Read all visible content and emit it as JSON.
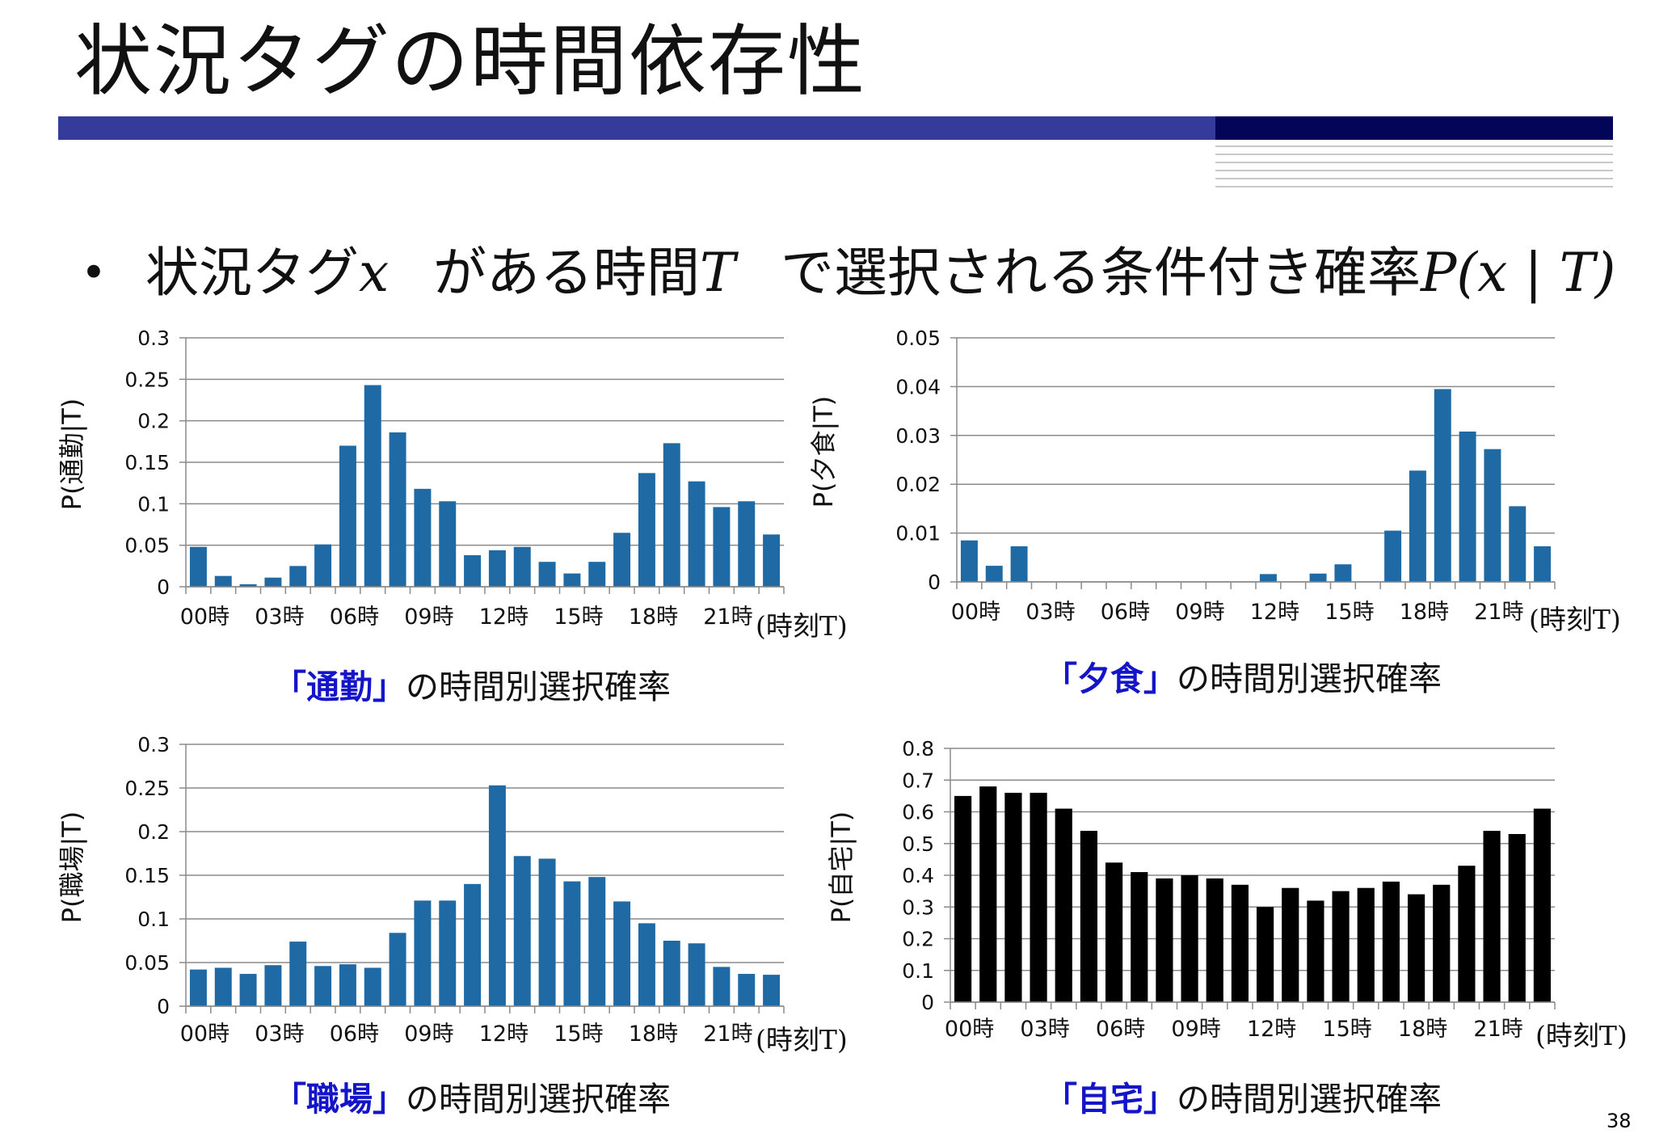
{
  "slide": {
    "title": "状況タグの時間依存性",
    "bullet": {
      "part1": "状況タグ",
      "var_x": "x",
      "part2": "がある時間",
      "var_T": "T",
      "part3": "で選択される条件付き確率",
      "formula": "P(x | T)"
    },
    "page_number": "38"
  },
  "colors": {
    "blue_bar": "#1f6aa5",
    "black_bar": "#000000",
    "accent_text": "#1414c8",
    "title_bar": "#353b9b",
    "title_bar_dark": "#020558"
  },
  "chart_data": [
    {
      "id": "commute",
      "type": "bar",
      "categories": [
        "00時",
        "01時",
        "02時",
        "03時",
        "04時",
        "05時",
        "06時",
        "07時",
        "08時",
        "09時",
        "10時",
        "11時",
        "12時",
        "13時",
        "14時",
        "15時",
        "16時",
        "17時",
        "18時",
        "19時",
        "20時",
        "21時",
        "22時",
        "23時"
      ],
      "tick_labels": [
        "00時",
        "03時",
        "06時",
        "09時",
        "12時",
        "15時",
        "18時",
        "21時"
      ],
      "values": [
        0.048,
        0.013,
        0.003,
        0.011,
        0.025,
        0.051,
        0.17,
        0.243,
        0.186,
        0.118,
        0.103,
        0.038,
        0.044,
        0.048,
        0.03,
        0.016,
        0.03,
        0.065,
        0.137,
        0.173,
        0.127,
        0.096,
        0.103,
        0.063
      ],
      "ylabel": "P(通勤|T)",
      "xlabel": "(時刻T)",
      "ylim": [
        0,
        0.3
      ],
      "yticks": [
        0,
        0.05,
        0.1,
        0.15,
        0.2,
        0.25,
        0.3
      ],
      "ytick_labels": [
        "0",
        "0.05",
        "0.1",
        "0.15",
        "0.2",
        "0.25",
        "0.3"
      ],
      "color": "#1f6aa5",
      "grid": true,
      "caption_tag": "「通勤」",
      "caption_rest": "の時間別選択確率"
    },
    {
      "id": "dinner",
      "type": "bar",
      "categories": [
        "00時",
        "01時",
        "02時",
        "03時",
        "04時",
        "05時",
        "06時",
        "07時",
        "08時",
        "09時",
        "10時",
        "11時",
        "12時",
        "13時",
        "14時",
        "15時",
        "16時",
        "17時",
        "18時",
        "19時",
        "20時",
        "21時",
        "22時",
        "23時"
      ],
      "tick_labels": [
        "00時",
        "03時",
        "06時",
        "09時",
        "12時",
        "15時",
        "18時",
        "21時"
      ],
      "values": [
        0.0085,
        0.0033,
        0.0073,
        0,
        0,
        0,
        0,
        0,
        0,
        0,
        0,
        0,
        0.0016,
        0,
        0.0017,
        0.0036,
        0,
        0.0105,
        0.0228,
        0.0395,
        0.0308,
        0.0272,
        0.0155,
        0.0073
      ],
      "ylabel": "P(夕食|T)",
      "xlabel": "(時刻T)",
      "ylim": [
        0,
        0.05
      ],
      "yticks": [
        0,
        0.01,
        0.02,
        0.03,
        0.04,
        0.05
      ],
      "ytick_labels": [
        "0",
        "0.01",
        "0.02",
        "0.03",
        "0.04",
        "0.05"
      ],
      "color": "#1f6aa5",
      "grid": true,
      "caption_tag": "「夕食」",
      "caption_rest": "の時間別選択確率"
    },
    {
      "id": "workplace",
      "type": "bar",
      "categories": [
        "00時",
        "01時",
        "02時",
        "03時",
        "04時",
        "05時",
        "06時",
        "07時",
        "08時",
        "09時",
        "10時",
        "11時",
        "12時",
        "13時",
        "14時",
        "15時",
        "16時",
        "17時",
        "18時",
        "19時",
        "20時",
        "21時",
        "22時",
        "23時"
      ],
      "tick_labels": [
        "00時",
        "03時",
        "06時",
        "09時",
        "12時",
        "15時",
        "18時",
        "21時"
      ],
      "values": [
        0.042,
        0.044,
        0.037,
        0.047,
        0.074,
        0.046,
        0.048,
        0.044,
        0.084,
        0.121,
        0.121,
        0.14,
        0.253,
        0.172,
        0.169,
        0.143,
        0.148,
        0.12,
        0.095,
        0.075,
        0.072,
        0.045,
        0.037,
        0.036
      ],
      "ylabel": "P(職場|T)",
      "xlabel": "(時刻T)",
      "ylim": [
        0,
        0.3
      ],
      "yticks": [
        0,
        0.05,
        0.1,
        0.15,
        0.2,
        0.25,
        0.3
      ],
      "ytick_labels": [
        "0",
        "0.05",
        "0.1",
        "0.15",
        "0.2",
        "0.25",
        "0.3"
      ],
      "color": "#1f6aa5",
      "grid": true,
      "caption_tag": "「職場」",
      "caption_rest": "の時間別選択確率"
    },
    {
      "id": "home",
      "type": "bar",
      "categories": [
        "00時",
        "01時",
        "02時",
        "03時",
        "04時",
        "05時",
        "06時",
        "07時",
        "08時",
        "09時",
        "10時",
        "11時",
        "12時",
        "13時",
        "14時",
        "15時",
        "16時",
        "17時",
        "18時",
        "19時",
        "20時",
        "21時",
        "22時",
        "23時"
      ],
      "tick_labels": [
        "00時",
        "03時",
        "06時",
        "09時",
        "12時",
        "15時",
        "18時",
        "21時"
      ],
      "values": [
        0.65,
        0.68,
        0.66,
        0.66,
        0.61,
        0.54,
        0.44,
        0.41,
        0.39,
        0.4,
        0.39,
        0.37,
        0.3,
        0.36,
        0.32,
        0.35,
        0.36,
        0.38,
        0.34,
        0.37,
        0.43,
        0.54,
        0.53,
        0.61
      ],
      "ylabel": "P(自宅|T)",
      "xlabel": "(時刻T)",
      "ylim": [
        0,
        0.8
      ],
      "yticks": [
        0,
        0.1,
        0.2,
        0.3,
        0.4,
        0.5,
        0.6,
        0.7,
        0.8
      ],
      "ytick_labels": [
        "0",
        "0.1",
        "0.2",
        "0.3",
        "0.4",
        "0.5",
        "0.6",
        "0.7",
        "0.8"
      ],
      "color": "#000000",
      "grid": true,
      "caption_tag": "「自宅」",
      "caption_rest": "の時間別選択確率"
    }
  ]
}
